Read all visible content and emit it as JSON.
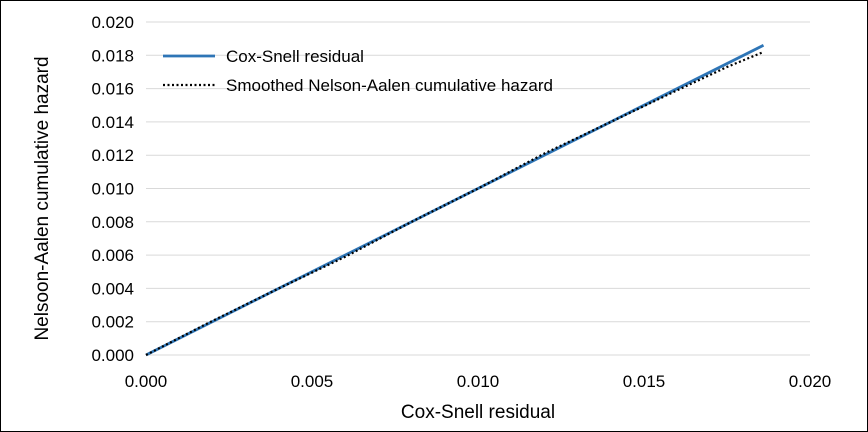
{
  "chart_data": {
    "type": "line",
    "title": "",
    "xlabel": "Cox-Snell residual",
    "ylabel": "Nelsoon-Aalen cumulative hazard",
    "xlim": [
      0,
      0.02
    ],
    "ylim": [
      0,
      0.02
    ],
    "x_ticks": [
      "0.000",
      "0.005",
      "0.010",
      "0.015",
      "0.020"
    ],
    "y_ticks": [
      "0.000",
      "0.002",
      "0.004",
      "0.006",
      "0.008",
      "0.010",
      "0.012",
      "0.014",
      "0.016",
      "0.018",
      "0.020"
    ],
    "grid": "horizontal",
    "legend_position": "top-left",
    "series": [
      {
        "name": "Cox-Snell residual",
        "style": "solid",
        "color": "#2E75B6",
        "x": [
          0.0,
          0.0186
        ],
        "y": [
          0.0,
          0.0186
        ]
      },
      {
        "name": "Smoothed Nelson-Aalen cumulative hazard",
        "style": "dotted",
        "color": "#000000",
        "x": [
          0.0,
          0.0018,
          0.004,
          0.006,
          0.008,
          0.01,
          0.012,
          0.014,
          0.016,
          0.0175,
          0.0186
        ],
        "y": [
          0.0,
          0.00185,
          0.004,
          0.0059,
          0.008,
          0.01,
          0.0121,
          0.014,
          0.0159,
          0.0173,
          0.0182
        ]
      }
    ]
  }
}
